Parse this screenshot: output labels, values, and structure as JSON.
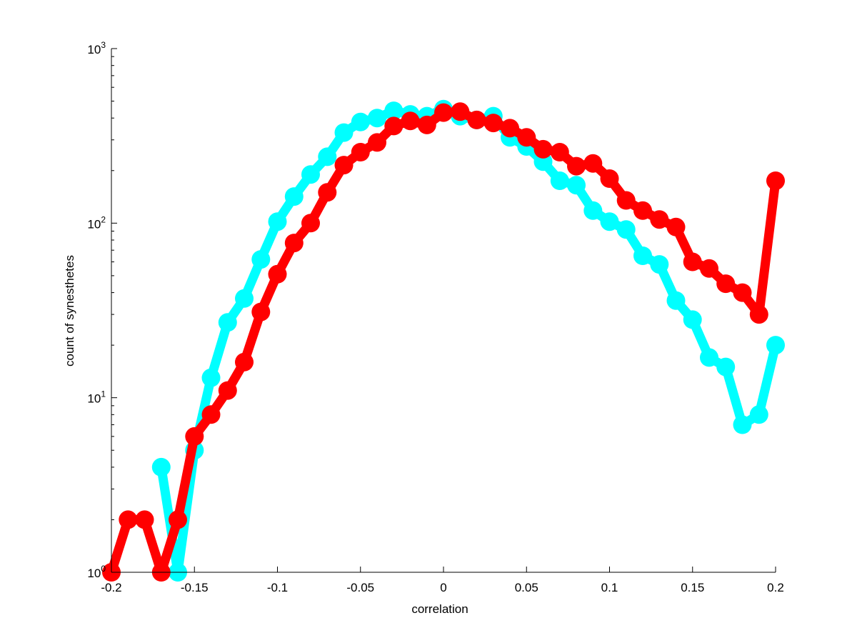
{
  "chart_data": {
    "type": "line",
    "title": "",
    "xlabel": "correlation",
    "ylabel": "count of synesthetes",
    "xlim": [
      -0.2,
      0.2
    ],
    "ylim": [
      1,
      1000
    ],
    "yscale": "log",
    "grid": false,
    "legend": "none",
    "x_ticks": [
      "-0.2",
      "-0.15",
      "-0.1",
      "-0.05",
      "0",
      "0.05",
      "0.1",
      "0.15",
      "0.2"
    ],
    "x_tick_values": [
      -0.2,
      -0.15,
      -0.1,
      -0.05,
      0,
      0.05,
      0.1,
      0.15,
      0.2
    ],
    "y_ticks": [
      {
        "base": "10",
        "exp": "0",
        "value": 1
      },
      {
        "base": "10",
        "exp": "1",
        "value": 10
      },
      {
        "base": "10",
        "exp": "2",
        "value": 100
      },
      {
        "base": "10",
        "exp": "3",
        "value": 1000
      }
    ],
    "series": [
      {
        "color": "#00ffff",
        "x": [
          -0.17,
          -0.16,
          -0.15,
          -0.14,
          -0.13,
          -0.12,
          -0.11,
          -0.1,
          -0.09,
          -0.08,
          -0.07,
          -0.06,
          -0.05,
          -0.04,
          -0.03,
          -0.02,
          -0.01,
          0.0,
          0.01,
          0.02,
          0.03,
          0.04,
          0.05,
          0.06,
          0.07,
          0.08,
          0.09,
          0.1,
          0.11,
          0.12,
          0.13,
          0.14,
          0.15,
          0.16,
          0.17,
          0.18,
          0.19,
          0.2
        ],
        "values": [
          4,
          1,
          5,
          13,
          27,
          37,
          62,
          102,
          142,
          190,
          240,
          330,
          380,
          400,
          440,
          420,
          410,
          450,
          410,
          390,
          410,
          310,
          275,
          225,
          175,
          165,
          118,
          102,
          92,
          65,
          58,
          36,
          28,
          17,
          15,
          7,
          8,
          20
        ]
      },
      {
        "color": "#ff0000",
        "x": [
          -0.2,
          -0.19,
          -0.18,
          -0.17,
          -0.16,
          -0.15,
          -0.14,
          -0.13,
          -0.12,
          -0.11,
          -0.1,
          -0.09,
          -0.08,
          -0.07,
          -0.06,
          -0.05,
          -0.04,
          -0.03,
          -0.02,
          -0.01,
          0.0,
          0.01,
          0.02,
          0.03,
          0.04,
          0.05,
          0.06,
          0.07,
          0.08,
          0.09,
          0.1,
          0.11,
          0.12,
          0.13,
          0.14,
          0.15,
          0.16,
          0.17,
          0.18,
          0.19,
          0.2
        ],
        "values": [
          1,
          2,
          2,
          1,
          2,
          6,
          8,
          11,
          16,
          31,
          51,
          77,
          100,
          150,
          215,
          255,
          290,
          360,
          385,
          365,
          430,
          435,
          390,
          375,
          350,
          310,
          265,
          255,
          212,
          220,
          180,
          135,
          118,
          105,
          95,
          60,
          55,
          45,
          40,
          30,
          175
        ]
      }
    ]
  }
}
